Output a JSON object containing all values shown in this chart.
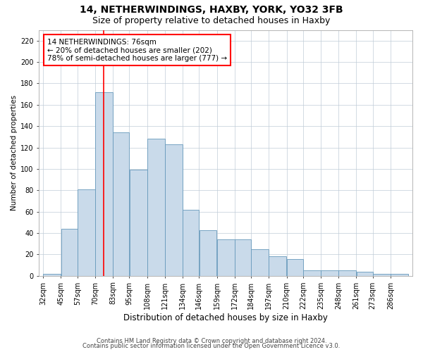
{
  "title1": "14, NETHERWINDINGS, HAXBY, YORK, YO32 3FB",
  "title2": "Size of property relative to detached houses in Haxby",
  "xlabel": "Distribution of detached houses by size in Haxby",
  "ylabel": "Number of detached properties",
  "categories": [
    "32sqm",
    "45sqm",
    "57sqm",
    "70sqm",
    "83sqm",
    "95sqm",
    "108sqm",
    "121sqm",
    "134sqm",
    "146sqm",
    "159sqm",
    "172sqm",
    "184sqm",
    "197sqm",
    "210sqm",
    "222sqm",
    "235sqm",
    "248sqm",
    "261sqm",
    "273sqm",
    "286sqm"
  ],
  "values": [
    2,
    44,
    81,
    172,
    134,
    99,
    128,
    123,
    62,
    43,
    34,
    34,
    25,
    18,
    16,
    5,
    5,
    5,
    4,
    2,
    2
  ],
  "bar_color": "#c9daea",
  "bar_edge_color": "#6699bb",
  "annotation_text": "14 NETHERWINDINGS: 76sqm\n← 20% of detached houses are smaller (202)\n78% of semi-detached houses are larger (777) →",
  "annotation_box_color": "white",
  "annotation_box_edge_color": "red",
  "footer1": "Contains HM Land Registry data © Crown copyright and database right 2024.",
  "footer2": "Contains public sector information licensed under the Open Government Licence v3.0.",
  "ylim": [
    0,
    230
  ],
  "yticks": [
    0,
    20,
    40,
    60,
    80,
    100,
    120,
    140,
    160,
    180,
    200,
    220
  ],
  "title1_fontsize": 10,
  "title2_fontsize": 9,
  "xlabel_fontsize": 8.5,
  "ylabel_fontsize": 7.5,
  "tick_fontsize": 7,
  "footer_fontsize": 6,
  "annotation_fontsize": 7.5
}
